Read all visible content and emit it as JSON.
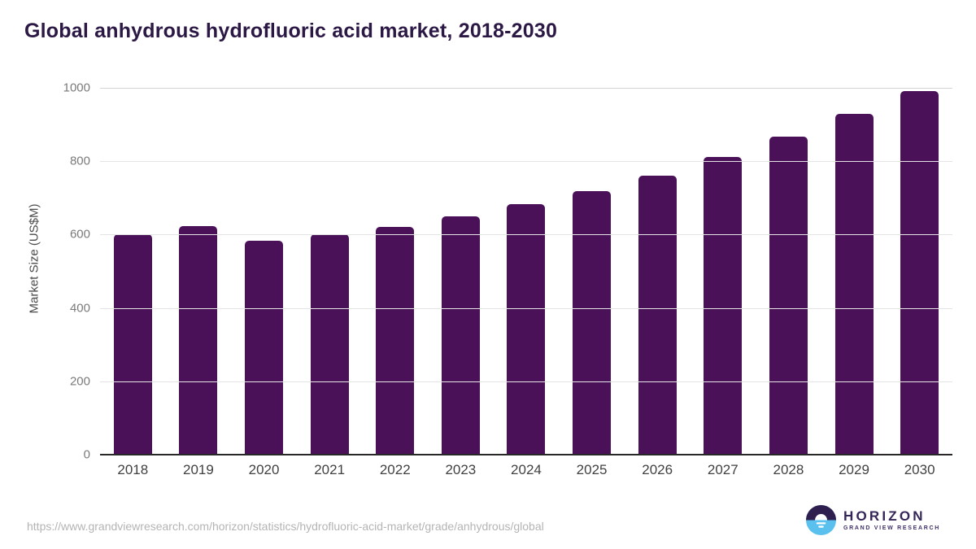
{
  "header": {
    "title": "Global anhydrous hydrofluoric acid market, 2018-2030"
  },
  "chart_data": {
    "type": "bar",
    "title": "Global anhydrous hydrofluoric acid market, 2018-2030",
    "categories": [
      "2018",
      "2019",
      "2020",
      "2021",
      "2022",
      "2023",
      "2024",
      "2025",
      "2026",
      "2027",
      "2028",
      "2029",
      "2030"
    ],
    "values": [
      602,
      622,
      584,
      600,
      621,
      649,
      682,
      719,
      761,
      811,
      868,
      929,
      992
    ],
    "xlabel": "",
    "ylabel": "Market Size (US$M)",
    "ylim": [
      0,
      1000
    ],
    "yticks": [
      0,
      200,
      400,
      600,
      800,
      1000
    ],
    "grid": "horizontal",
    "legend": "none",
    "bar_color": "#4a1159"
  },
  "footer": {
    "url": "https://www.grandviewresearch.com/horizon/statistics/hydrofluoric-acid-market/grade/anhydrous/global"
  },
  "logo": {
    "name": "HORIZON",
    "subtitle": "GRAND VIEW RESEARCH",
    "icon": "horizon-sunrise-icon",
    "icon_colors": {
      "purple": "#2f1f4f",
      "blue": "#5ac0ee",
      "white": "#ffffff"
    }
  },
  "colors": {
    "title_text": "#2b1844",
    "bar": "#4a1159",
    "gridline": "#e4e4e4",
    "axis_line": "#272727",
    "y_tick_text": "#7a7a7a",
    "x_tick_text": "#414141",
    "url_text": "#b4b4b4"
  }
}
